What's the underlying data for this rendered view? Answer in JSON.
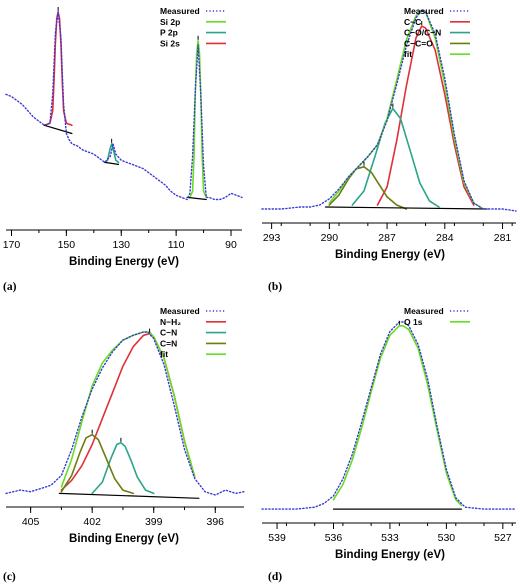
{
  "figure": {
    "background": "#ffffff"
  },
  "chart_data": [
    {
      "panel": "(a)",
      "type": "line",
      "xlabel": "Binding Energy (eV)",
      "ylabel": "",
      "xlim": [
        172,
        86
      ],
      "xticks": [
        170,
        150,
        130,
        110,
        90
      ],
      "x_reversed": true,
      "legend_position": "top-right",
      "series": [
        {
          "name": "Measured",
          "color": "#3a3ad6",
          "style": "dotted",
          "x": [
            172,
            170,
            168,
            166,
            164,
            162,
            160,
            158,
            156,
            155,
            154,
            153,
            152,
            151,
            150,
            149,
            148,
            146,
            144,
            142,
            140,
            138,
            136,
            134,
            133,
            132,
            130,
            128,
            126,
            124,
            122,
            120,
            118,
            116,
            114,
            112,
            110,
            108,
            106,
            105,
            104,
            103,
            102,
            101,
            100,
            99,
            98,
            96,
            94,
            92,
            90,
            88,
            86
          ],
          "y": [
            0.6,
            0.59,
            0.57,
            0.55,
            0.52,
            0.49,
            0.47,
            0.45,
            0.46,
            0.6,
            0.9,
            1.0,
            0.88,
            0.55,
            0.41,
            0.38,
            0.36,
            0.35,
            0.33,
            0.32,
            0.31,
            0.29,
            0.27,
            0.3,
            0.36,
            0.31,
            0.28,
            0.27,
            0.26,
            0.25,
            0.24,
            0.22,
            0.2,
            0.18,
            0.16,
            0.13,
            0.11,
            0.1,
            0.09,
            0.12,
            0.3,
            0.62,
            0.84,
            0.6,
            0.25,
            0.1,
            0.1,
            0.09,
            0.09,
            0.1,
            0.12,
            0.11,
            0.1
          ]
        },
        {
          "name": "Si 2p",
          "color": "#66dd22",
          "style": "solid",
          "x": [
            105,
            104,
            103.5,
            103,
            102.5,
            102,
            101.5,
            101,
            100.5,
            100,
            99
          ],
          "y": [
            0.1,
            0.13,
            0.3,
            0.6,
            0.8,
            0.86,
            0.8,
            0.6,
            0.3,
            0.13,
            0.1
          ]
        },
        {
          "name": "P  2p",
          "color": "#2aa58a",
          "style": "solid",
          "x": [
            136,
            135,
            134.5,
            134,
            133.5,
            133,
            132.5,
            132,
            131
          ],
          "y": [
            0.27,
            0.28,
            0.31,
            0.34,
            0.36,
            0.34,
            0.31,
            0.28,
            0.27
          ]
        },
        {
          "name": "Si 2s",
          "color": "#e0303a",
          "style": "solid",
          "x": [
            158,
            156,
            155,
            154.5,
            154,
            153.5,
            153,
            152.5,
            152,
            151.5,
            151,
            150,
            148
          ],
          "y": [
            0.45,
            0.46,
            0.52,
            0.66,
            0.85,
            0.97,
            1.0,
            0.97,
            0.85,
            0.66,
            0.52,
            0.46,
            0.45
          ]
        },
        {
          "name": "",
          "color": "#000000",
          "style": "solid",
          "x": [
            158,
            148
          ],
          "y": [
            0.45,
            0.41
          ]
        },
        {
          "name": "",
          "color": "#000000",
          "style": "solid",
          "x": [
            136,
            131
          ],
          "y": [
            0.27,
            0.26
          ]
        },
        {
          "name": "",
          "color": "#000000",
          "style": "solid",
          "x": [
            106,
            99
          ],
          "y": [
            0.1,
            0.09
          ]
        }
      ]
    },
    {
      "panel": "(b)",
      "type": "line",
      "xlabel": "Binding Energy (eV)",
      "ylabel": "",
      "xlim": [
        293.5,
        280.3
      ],
      "xticks": [
        293,
        290,
        287,
        284,
        281
      ],
      "x_reversed": true,
      "legend_position": "top-right",
      "series": [
        {
          "name": "Measured",
          "color": "#3a3ad6",
          "style": "dotted",
          "x": [
            293.5,
            292.5,
            291.5,
            291,
            290.5,
            290,
            289.5,
            289,
            288.5,
            288,
            287.5,
            287,
            286.5,
            286,
            285.5,
            285.2,
            285,
            284.5,
            284,
            283.5,
            283,
            282.5,
            282,
            281.5,
            281,
            280.3
          ],
          "y": [
            0.01,
            0.01,
            0.02,
            0.02,
            0.03,
            0.06,
            0.11,
            0.17,
            0.22,
            0.27,
            0.33,
            0.45,
            0.63,
            0.82,
            0.96,
            1.0,
            0.99,
            0.88,
            0.66,
            0.38,
            0.15,
            0.04,
            0.01,
            0.01,
            0.01,
            0.0
          ]
        },
        {
          "name": "C−C",
          "color": "#e0303a",
          "style": "solid",
          "x": [
            287.5,
            287,
            286.5,
            286,
            285.5,
            285.2,
            285,
            284.5,
            284,
            283.5,
            283,
            282.5
          ],
          "y": [
            0.03,
            0.12,
            0.35,
            0.62,
            0.86,
            0.92,
            0.91,
            0.8,
            0.58,
            0.33,
            0.12,
            0.03
          ]
        },
        {
          "name": "C−O/C−N",
          "color": "#2aa58a",
          "style": "solid",
          "x": [
            288.8,
            288.2,
            287.6,
            287.1,
            286.7,
            286.3,
            285.8,
            285.3,
            284.8,
            284.3
          ],
          "y": [
            0.03,
            0.1,
            0.28,
            0.44,
            0.51,
            0.46,
            0.3,
            0.14,
            0.05,
            0.02
          ]
        },
        {
          "name": "C−C=O",
          "color": "#6b7d10",
          "style": "solid",
          "x": [
            290,
            289.5,
            289,
            288.6,
            288.2,
            287.8,
            287.4,
            287,
            286.5,
            286
          ],
          "y": [
            0.03,
            0.08,
            0.16,
            0.21,
            0.22,
            0.19,
            0.13,
            0.07,
            0.03,
            0.01
          ]
        },
        {
          "name": "fit",
          "color": "#66dd22",
          "style": "solid",
          "x": [
            290,
            289.5,
            289,
            288.5,
            288,
            287.5,
            287,
            286.5,
            286,
            285.5,
            285.2,
            285,
            284.5,
            284,
            283.5,
            283,
            282.5,
            282
          ],
          "y": [
            0.04,
            0.1,
            0.17,
            0.22,
            0.27,
            0.33,
            0.46,
            0.65,
            0.85,
            0.97,
            1.0,
            0.99,
            0.86,
            0.63,
            0.36,
            0.14,
            0.04,
            0.01
          ]
        },
        {
          "name": "",
          "color": "#000000",
          "style": "solid",
          "x": [
            290.2,
            281.8
          ],
          "y": [
            0.02,
            0.01
          ]
        }
      ]
    },
    {
      "panel": "(c)",
      "type": "line",
      "xlabel": "Binding Energy (eV)",
      "ylabel": "",
      "xlim": [
        406.2,
        394.6
      ],
      "xticks": [
        405,
        402,
        399,
        396
      ],
      "x_reversed": true,
      "legend_position": "top-right",
      "series": [
        {
          "name": "Measured",
          "color": "#3a3ad6",
          "style": "dotted",
          "x": [
            406.2,
            405.5,
            405,
            404.5,
            404,
            403.5,
            403,
            402.5,
            402,
            401.5,
            401,
            400.5,
            400,
            399.5,
            399.3,
            399,
            398.5,
            398,
            397.5,
            397,
            396.5,
            396,
            395.5,
            395,
            394.6
          ],
          "y": [
            0.01,
            0.03,
            0.02,
            0.04,
            0.06,
            0.12,
            0.28,
            0.48,
            0.65,
            0.78,
            0.88,
            0.95,
            0.98,
            1.0,
            1.0,
            0.96,
            0.8,
            0.55,
            0.28,
            0.1,
            0.02,
            0.0,
            0.03,
            0.01,
            0.02
          ]
        },
        {
          "name": "N−H₂",
          "color": "#e0303a",
          "style": "solid",
          "x": [
            403.5,
            403,
            402.5,
            402,
            401.5,
            401,
            400.5,
            400,
            399.5,
            399.2,
            399,
            398.5,
            398,
            397.5,
            397
          ],
          "y": [
            0.03,
            0.09,
            0.18,
            0.31,
            0.47,
            0.63,
            0.79,
            0.91,
            0.98,
            0.99,
            0.97,
            0.84,
            0.61,
            0.33,
            0.11
          ]
        },
        {
          "name": "C−N",
          "color": "#2aa58a",
          "style": "solid",
          "x": [
            402,
            401.5,
            401.1,
            400.8,
            400.6,
            400.4,
            400.1,
            399.8,
            399.4,
            399
          ],
          "y": [
            0.01,
            0.08,
            0.22,
            0.31,
            0.32,
            0.3,
            0.21,
            0.11,
            0.03,
            0.01
          ]
        },
        {
          "name": "C=N",
          "color": "#6b7d10",
          "style": "solid",
          "x": [
            403.5,
            403,
            402.6,
            402.3,
            402,
            401.7,
            401.3,
            400.9,
            400.5,
            400
          ],
          "y": [
            0.02,
            0.12,
            0.26,
            0.35,
            0.37,
            0.34,
            0.22,
            0.1,
            0.03,
            0.01
          ]
        },
        {
          "name": "fit",
          "color": "#66dd22",
          "style": "solid",
          "x": [
            403.5,
            403,
            402.5,
            402,
            401.5,
            401,
            400.5,
            400,
            399.5,
            399.2,
            399,
            398.5,
            398,
            397.5,
            397
          ],
          "y": [
            0.05,
            0.22,
            0.45,
            0.67,
            0.81,
            0.89,
            0.95,
            0.98,
            1.0,
            1.0,
            0.97,
            0.84,
            0.61,
            0.33,
            0.11
          ]
        },
        {
          "name": "",
          "color": "#000000",
          "style": "solid",
          "x": [
            403.6,
            396.8
          ],
          "y": [
            0.01,
            -0.02
          ]
        }
      ]
    },
    {
      "panel": "(d)",
      "type": "line",
      "xlabel": "Binding Energy (eV)",
      "ylabel": "",
      "xlim": [
        539.8,
        526.3
      ],
      "xticks": [
        539,
        536,
        533,
        530,
        527
      ],
      "x_reversed": true,
      "legend_position": "top-right",
      "series": [
        {
          "name": "Measured",
          "color": "#3a3ad6",
          "style": "dotted",
          "x": [
            539.8,
            539,
            538,
            537,
            536.5,
            536,
            535.5,
            535,
            534.5,
            534,
            533.5,
            533,
            532.5,
            532.3,
            532,
            531.5,
            531,
            530.5,
            530,
            529.5,
            529,
            528,
            527,
            526.3
          ],
          "y": [
            0.01,
            0.01,
            0.01,
            0.02,
            0.04,
            0.08,
            0.17,
            0.3,
            0.47,
            0.65,
            0.83,
            0.95,
            1.0,
            1.0,
            0.98,
            0.88,
            0.7,
            0.45,
            0.22,
            0.07,
            0.02,
            0.01,
            0.01,
            0.01
          ]
        },
        {
          "name": "O 1s",
          "color": "#66dd22",
          "style": "solid",
          "x": [
            536,
            535.5,
            535,
            534.5,
            534,
            533.5,
            533,
            532.5,
            532.3,
            532,
            531.5,
            531,
            530.5,
            530,
            529.5,
            529.2
          ],
          "y": [
            0.06,
            0.14,
            0.27,
            0.44,
            0.63,
            0.81,
            0.93,
            0.98,
            0.98,
            0.96,
            0.86,
            0.67,
            0.43,
            0.2,
            0.06,
            0.03
          ]
        },
        {
          "name": "",
          "color": "#000000",
          "style": "solid",
          "x": [
            536,
            529.2
          ],
          "y": [
            0.01,
            0.01
          ]
        }
      ]
    }
  ]
}
